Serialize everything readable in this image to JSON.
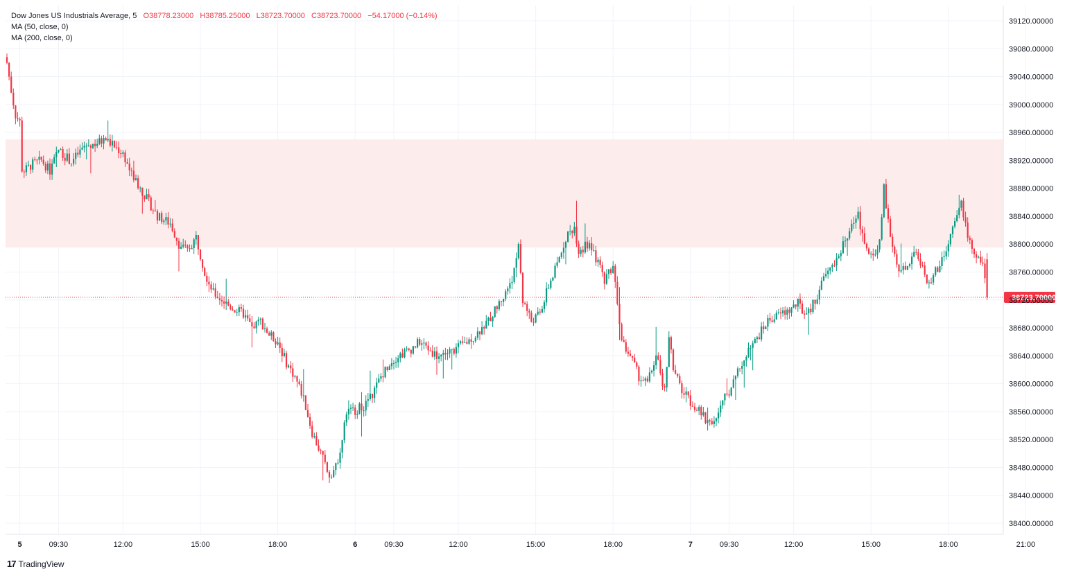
{
  "legend": {
    "title": "Dow Jones US Industrials Average, 5",
    "open": "O38778.23000",
    "high": "H38785.25000",
    "low": "L38723.70000",
    "close": "C38723.70000",
    "change": "−54.17000 (−0.14%)",
    "ma1": "MA (50, close, 0)",
    "ma2": "MA (200, close, 0)"
  },
  "branding": {
    "logo_mark": "17",
    "name": "TradingView"
  },
  "last_price_label": "38723.70000",
  "colors": {
    "up": "#089981",
    "down": "#f23645",
    "zone": "#fdecec",
    "grid": "#f0f3fa"
  },
  "chart_data": {
    "type": "candlestick",
    "title": "Dow Jones US Industrials Average, 5",
    "interval": "5",
    "ylim": [
      38380,
      39140
    ],
    "y_ticks": [
      "39120.00000",
      "39080.00000",
      "39040.00000",
      "39000.00000",
      "38960.00000",
      "38920.00000",
      "38880.00000",
      "38840.00000",
      "38800.00000",
      "38760.00000",
      "38720.00000",
      "38680.00000",
      "38640.00000",
      "38600.00000",
      "38560.00000",
      "38520.00000",
      "38480.00000",
      "38440.00000",
      "38400.00000"
    ],
    "x_ticks": [
      {
        "label": "5",
        "bar": 6,
        "bold": true
      },
      {
        "label": "09:30",
        "bar": 24
      },
      {
        "label": "12:00",
        "bar": 54
      },
      {
        "label": "15:00",
        "bar": 90
      },
      {
        "label": "18:00",
        "bar": 126
      },
      {
        "label": "6",
        "bar": 162,
        "bold": true
      },
      {
        "label": "09:30",
        "bar": 180
      },
      {
        "label": "12:00",
        "bar": 210
      },
      {
        "label": "15:00",
        "bar": 246
      },
      {
        "label": "18:00",
        "bar": 282
      },
      {
        "label": "7",
        "bar": 318,
        "bold": true
      },
      {
        "label": "09:30",
        "bar": 336
      },
      {
        "label": "12:00",
        "bar": 366
      },
      {
        "label": "15:00",
        "bar": 402
      },
      {
        "label": "18:00",
        "bar": 438
      },
      {
        "label": "21:00",
        "bar": 474
      }
    ],
    "resistance_zone": [
      38795,
      38950
    ],
    "last_price": 38723.7,
    "close_path": [
      [
        0,
        39060
      ],
      [
        2,
        39020
      ],
      [
        4,
        38985
      ],
      [
        6,
        38975
      ],
      [
        6.1,
        38910
      ],
      [
        8,
        38905
      ],
      [
        12,
        38915
      ],
      [
        16,
        38920
      ],
      [
        20,
        38905
      ],
      [
        24,
        38935
      ],
      [
        30,
        38918
      ],
      [
        36,
        38940
      ],
      [
        42,
        38945
      ],
      [
        46,
        38950
      ],
      [
        50,
        38940
      ],
      [
        54,
        38930
      ],
      [
        58,
        38900
      ],
      [
        64,
        38870
      ],
      [
        70,
        38840
      ],
      [
        76,
        38830
      ],
      [
        80,
        38800
      ],
      [
        84,
        38790
      ],
      [
        88,
        38810
      ],
      [
        92,
        38760
      ],
      [
        96,
        38730
      ],
      [
        100,
        38720
      ],
      [
        104,
        38710
      ],
      [
        110,
        38700
      ],
      [
        114,
        38680
      ],
      [
        118,
        38690
      ],
      [
        122,
        38670
      ],
      [
        126,
        38660
      ],
      [
        130,
        38630
      ],
      [
        134,
        38610
      ],
      [
        138,
        38580
      ],
      [
        142,
        38530
      ],
      [
        146,
        38500
      ],
      [
        150,
        38470
      ],
      [
        153,
        38480
      ],
      [
        156,
        38520
      ],
      [
        158,
        38560
      ],
      [
        162,
        38562
      ],
      [
        166,
        38568
      ],
      [
        170,
        38585
      ],
      [
        174,
        38610
      ],
      [
        178,
        38630
      ],
      [
        182,
        38640
      ],
      [
        188,
        38650
      ],
      [
        192,
        38660
      ],
      [
        196,
        38650
      ],
      [
        200,
        38640
      ],
      [
        206,
        38645
      ],
      [
        210,
        38652
      ],
      [
        214,
        38660
      ],
      [
        218,
        38670
      ],
      [
        224,
        38690
      ],
      [
        228,
        38710
      ],
      [
        232,
        38730
      ],
      [
        236,
        38760
      ],
      [
        238,
        38800
      ],
      [
        240,
        38720
      ],
      [
        244,
        38690
      ],
      [
        248,
        38700
      ],
      [
        252,
        38740
      ],
      [
        256,
        38770
      ],
      [
        260,
        38810
      ],
      [
        264,
        38825
      ],
      [
        266,
        38790
      ],
      [
        270,
        38800
      ],
      [
        274,
        38780
      ],
      [
        278,
        38750
      ],
      [
        282,
        38770
      ],
      [
        284,
        38720
      ],
      [
        286,
        38660
      ],
      [
        290,
        38640
      ],
      [
        294,
        38610
      ],
      [
        298,
        38600
      ],
      [
        302,
        38640
      ],
      [
        306,
        38590
      ],
      [
        308,
        38670
      ],
      [
        310,
        38620
      ],
      [
        314,
        38590
      ],
      [
        318,
        38575
      ],
      [
        322,
        38560
      ],
      [
        326,
        38545
      ],
      [
        330,
        38550
      ],
      [
        334,
        38580
      ],
      [
        338,
        38600
      ],
      [
        342,
        38630
      ],
      [
        346,
        38650
      ],
      [
        350,
        38670
      ],
      [
        354,
        38690
      ],
      [
        360,
        38700
      ],
      [
        364,
        38705
      ],
      [
        368,
        38715
      ],
      [
        372,
        38695
      ],
      [
        376,
        38720
      ],
      [
        380,
        38750
      ],
      [
        384,
        38770
      ],
      [
        388,
        38790
      ],
      [
        392,
        38820
      ],
      [
        396,
        38840
      ],
      [
        400,
        38790
      ],
      [
        404,
        38780
      ],
      [
        406,
        38800
      ],
      [
        408,
        38880
      ],
      [
        410,
        38830
      ],
      [
        414,
        38770
      ],
      [
        418,
        38760
      ],
      [
        422,
        38790
      ],
      [
        426,
        38770
      ],
      [
        428,
        38740
      ],
      [
        432,
        38760
      ],
      [
        436,
        38780
      ],
      [
        440,
        38820
      ],
      [
        444,
        38860
      ],
      [
        446,
        38830
      ],
      [
        448,
        38800
      ],
      [
        450,
        38780
      ],
      [
        454,
        38778
      ],
      [
        456,
        38723.7
      ]
    ]
  }
}
